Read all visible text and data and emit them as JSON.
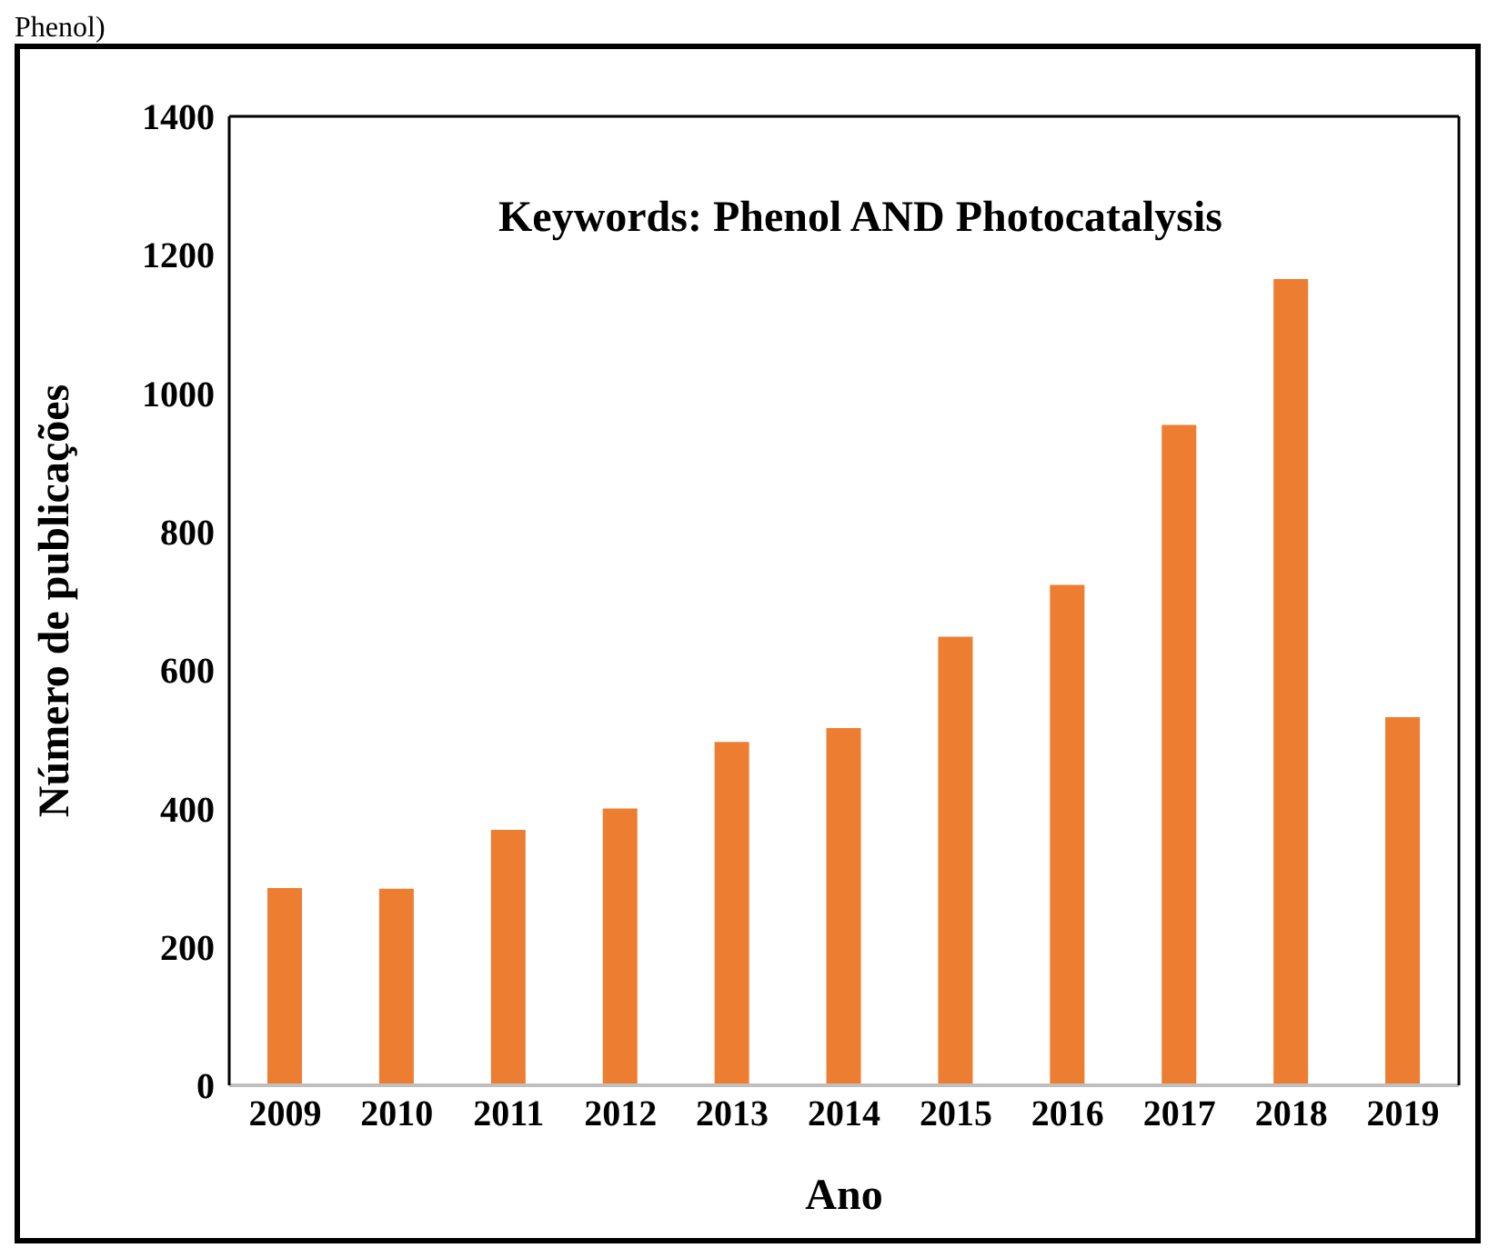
{
  "chart_data": {
    "type": "bar",
    "title": "Keywords: Phenol AND Photocatalysis",
    "xlabel": "Ano",
    "ylabel": "Número de publicações",
    "annotations": [
      "Phenol)"
    ],
    "categories": [
      "2009",
      "2010",
      "2011",
      "2012",
      "2013",
      "2014",
      "2015",
      "2016",
      "2017",
      "2018",
      "2019"
    ],
    "values": [
      285,
      284,
      369,
      400,
      496,
      516,
      648,
      723,
      954,
      1165,
      532
    ],
    "color": "#ed7d31",
    "ylim": [
      0,
      1400
    ],
    "yticks": [
      0,
      200,
      400,
      600,
      800,
      1000,
      1200,
      1400
    ],
    "grid": false
  }
}
